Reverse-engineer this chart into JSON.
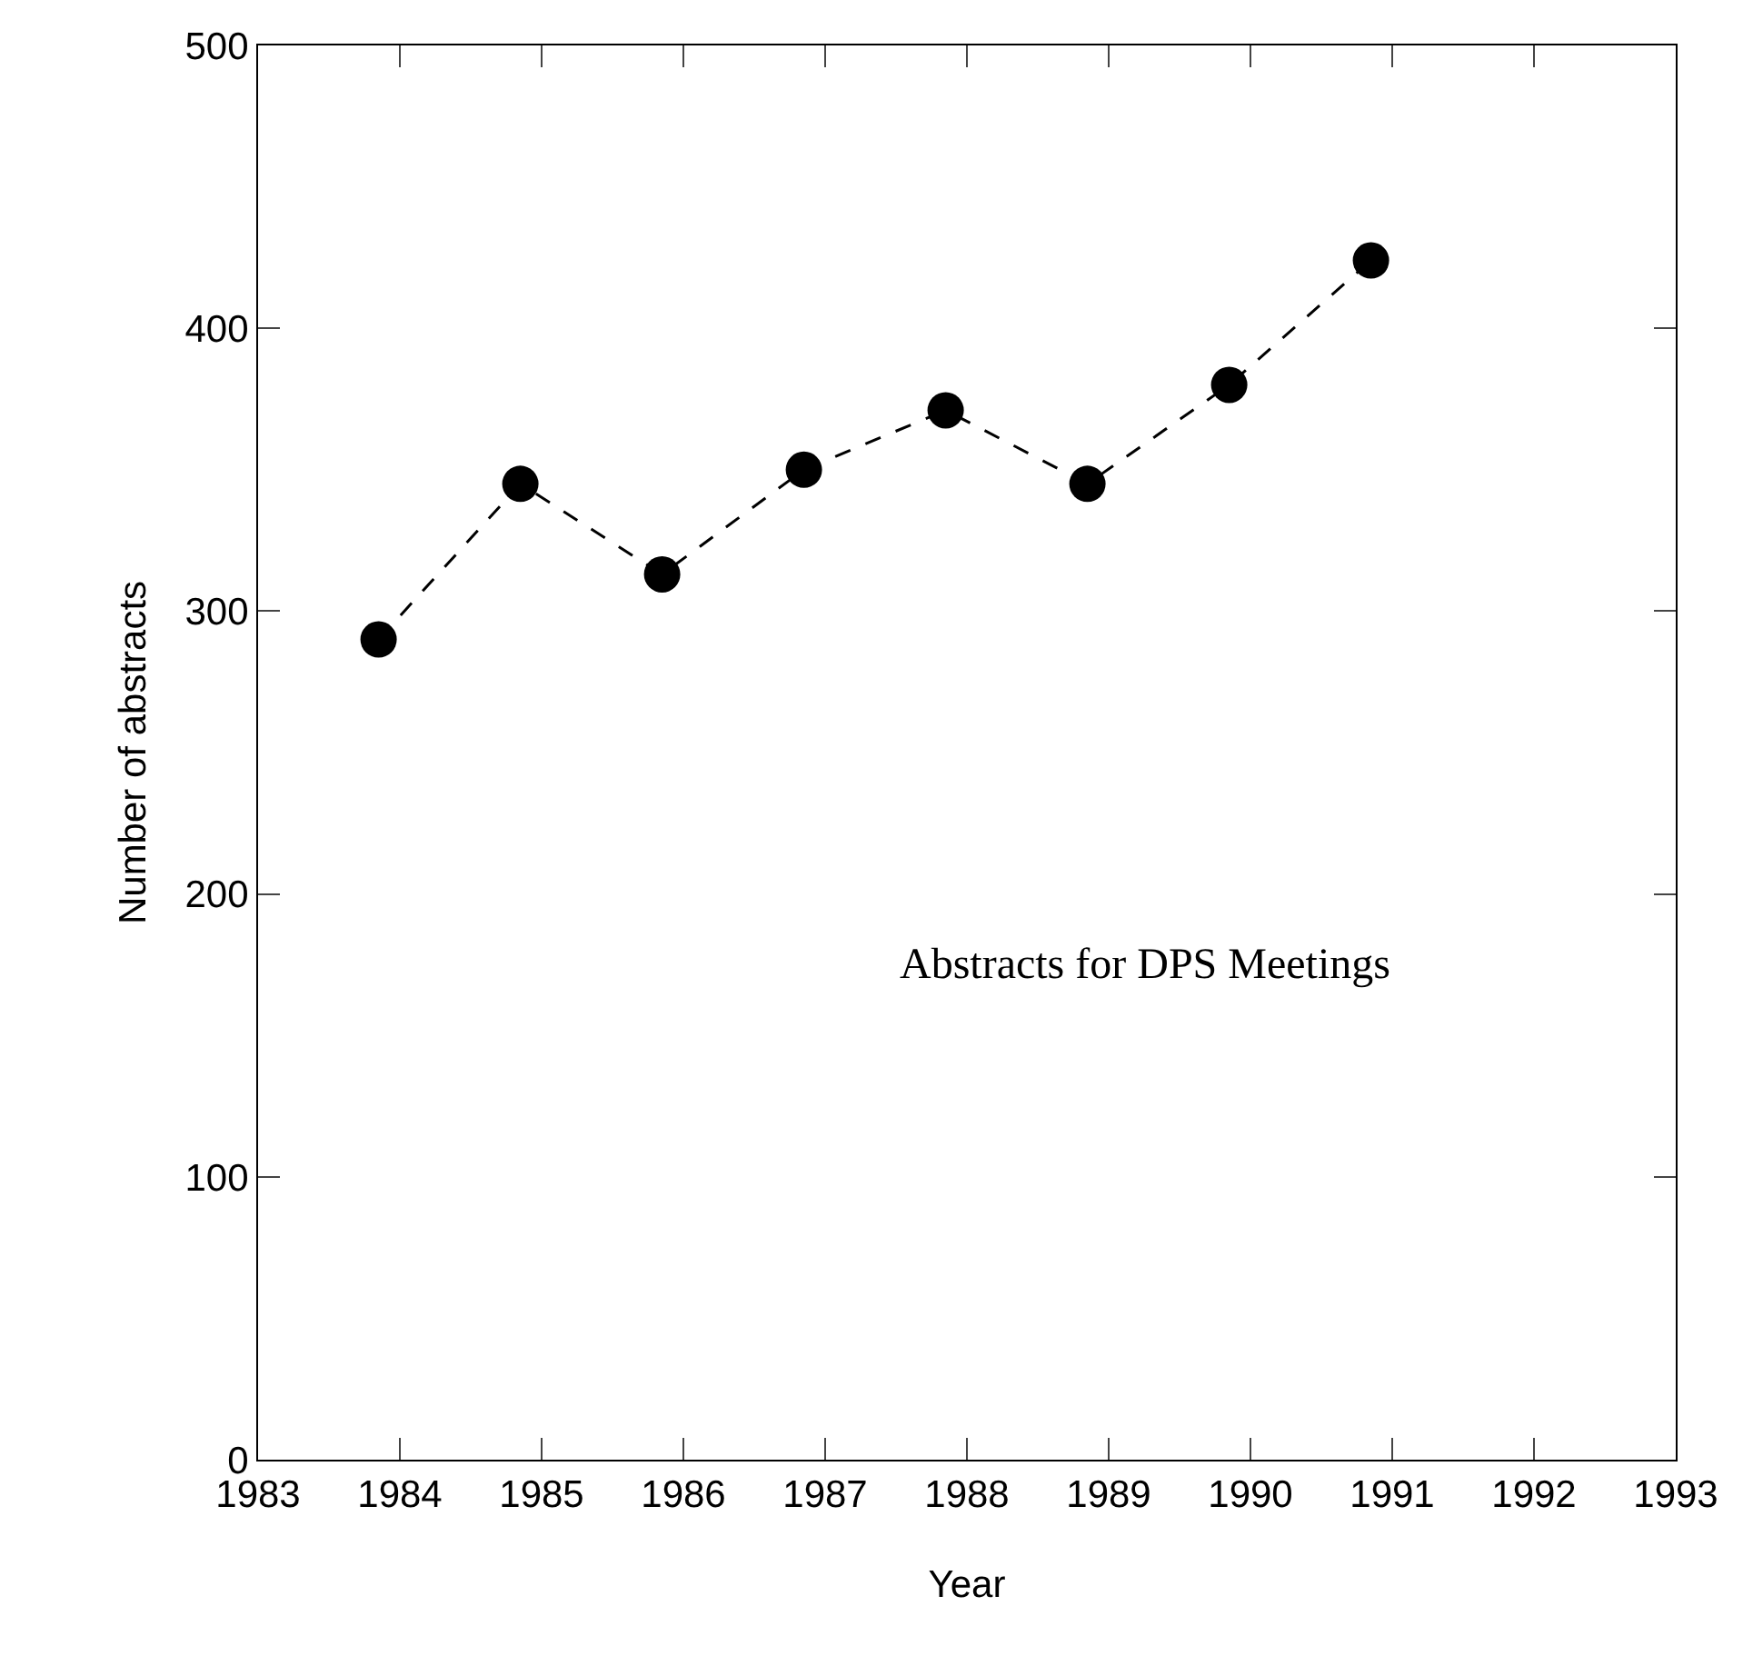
{
  "chart_data": {
    "type": "line",
    "xlabel": "Year",
    "ylabel": "Number of abstracts",
    "x": [
      1983.85,
      1984.85,
      1985.85,
      1986.85,
      1987.85,
      1988.85,
      1989.85,
      1990.85
    ],
    "series": [
      {
        "color": "#000000",
        "values": [
          290,
          345,
          313,
          350,
          371,
          345,
          380,
          424
        ]
      }
    ],
    "xlim": [
      1983,
      1993
    ],
    "xticks": [
      1983,
      1984,
      1985,
      1986,
      1987,
      1988,
      1989,
      1990,
      1991,
      1992,
      1993
    ],
    "ylim": [
      0,
      500
    ],
    "yticks": [
      0,
      100,
      200,
      300,
      400,
      500
    ],
    "annotations": [
      "Abstracts for DPS Meetings"
    ],
    "marker": "circle",
    "line_style": "dashed",
    "grid": false,
    "legend": false
  }
}
